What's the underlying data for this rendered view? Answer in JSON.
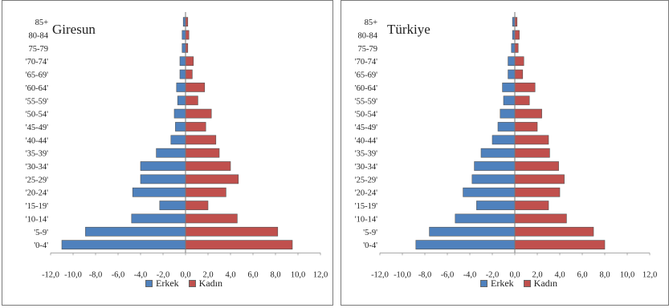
{
  "colors": {
    "erkek": "#4f81bd",
    "kadin": "#c0504d",
    "grid": "#888888",
    "border": "#7a7a7a"
  },
  "legend": {
    "erkek": "Erkek",
    "kadin": "Kadın"
  },
  "chart_data": [
    {
      "type": "bar",
      "title": "Giresun",
      "orientation": "horizontal",
      "categories": [
        "85+",
        "80-84",
        "75-79",
        "'70-74'",
        "'65-69'",
        "'60-64'",
        "'55-59'",
        "'50-54'",
        "'45-49'",
        "'40-44'",
        "'35-39'",
        "'30-34'",
        "'25-29'",
        "'20-24'",
        "'15-19'",
        "'10-14'",
        "'5-9'",
        "'0-4'"
      ],
      "xlim": [
        -12,
        12
      ],
      "xticks": [
        "-12,0",
        "-10,0",
        "-8,0",
        "-6,0",
        "-4,0",
        "-2,0",
        "0,0",
        "2,0",
        "4,0",
        "6,0",
        "8,0",
        "10,0",
        "12,0"
      ],
      "series": [
        {
          "name": "Erkek",
          "values": [
            -0.2,
            -0.3,
            -0.3,
            -0.5,
            -0.5,
            -0.8,
            -0.7,
            -1.0,
            -0.9,
            -1.3,
            -2.6,
            -4.0,
            -4.0,
            -4.7,
            -2.3,
            -4.8,
            -8.9,
            -11.0
          ]
        },
        {
          "name": "Kadın",
          "values": [
            0.2,
            0.3,
            0.2,
            0.7,
            0.6,
            1.7,
            1.1,
            2.3,
            1.8,
            2.7,
            3.0,
            4.0,
            4.7,
            3.6,
            2.0,
            4.6,
            8.2,
            9.5
          ]
        }
      ]
    },
    {
      "type": "bar",
      "title": "Türkiye",
      "orientation": "horizontal",
      "categories": [
        "85+",
        "80-84",
        "75-79",
        "'70-74'",
        "'65-69'",
        "'60-64'",
        "'55-59'",
        "'50-54'",
        "'45-49'",
        "'40-44'",
        "'35-39'",
        "'30-34'",
        "'25-29'",
        "'20-24'",
        "'15-19'",
        "'10-14'",
        "'5-9'",
        "'0-4'"
      ],
      "xlim": [
        -12,
        12
      ],
      "xticks": [
        "-12,0",
        "-10,0",
        "-8,0",
        "-6,0",
        "-4,0",
        "-2,0",
        "0,0",
        "2,0",
        "4,0",
        "6,0",
        "8,0",
        "10,0",
        "12,0"
      ],
      "series": [
        {
          "name": "Erkek",
          "values": [
            -0.2,
            -0.2,
            -0.3,
            -0.6,
            -0.6,
            -1.1,
            -1.0,
            -1.3,
            -1.5,
            -2.0,
            -3.0,
            -3.6,
            -3.8,
            -4.6,
            -3.4,
            -5.3,
            -7.6,
            -8.8
          ]
        },
        {
          "name": "Kadın",
          "values": [
            0.2,
            0.4,
            0.3,
            0.8,
            0.7,
            1.8,
            1.3,
            2.4,
            2.0,
            3.0,
            3.1,
            3.9,
            4.4,
            4.0,
            3.0,
            4.6,
            7.0,
            8.0
          ]
        }
      ]
    }
  ]
}
